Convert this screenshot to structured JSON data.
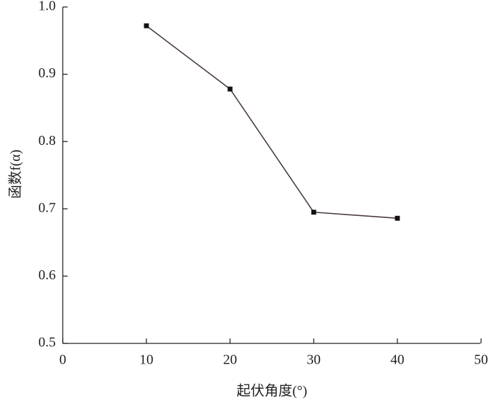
{
  "chart_data": {
    "type": "line",
    "x_label": "起伏角度(°)",
    "y_label": "函数f(α)",
    "x": [
      10,
      20,
      30,
      40
    ],
    "series": [
      {
        "color": "#4a3b3b",
        "marker_color": "#111111",
        "values": [
          0.972,
          0.878,
          0.695,
          0.686
        ]
      }
    ],
    "xlim": [
      0,
      50
    ],
    "xticks": [
      0,
      10,
      20,
      30,
      40,
      50
    ],
    "ylim": [
      0.5,
      1.0
    ],
    "yticks": [
      0.5,
      0.6,
      0.7,
      0.8,
      0.9,
      {
        "value": 1.0,
        "label": "1.0"
      }
    ],
    "grid": false
  }
}
